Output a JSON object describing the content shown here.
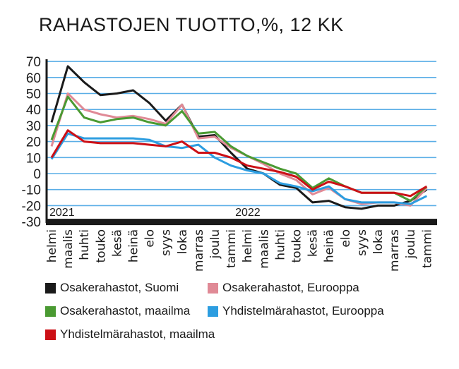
{
  "title": "RAHASTOJEN TUOTTO,%, 12 KK",
  "year_labels": [
    "2021",
    "2022"
  ],
  "legend": [
    {
      "label": "Osakerahastot, Suomi",
      "color": "#1a1a1a"
    },
    {
      "label": "Osakerahastot, Eurooppa",
      "color": "#e08a96"
    },
    {
      "label": "Osakerahastot, maailma",
      "color": "#4a9a32"
    },
    {
      "label": "Yhdistelmärahastot, Eurooppa",
      "color": "#2c9de0"
    },
    {
      "label": "Yhdistelmärahastot, maailma",
      "color": "#cc1016"
    }
  ],
  "chart_data": {
    "type": "line",
    "title": "RAHASTOJEN TUOTTO,%, 12 KK",
    "xlabel": "",
    "ylabel": "%",
    "ylim": [
      -30,
      70
    ],
    "yticks": [
      70,
      60,
      50,
      40,
      30,
      20,
      10,
      0,
      -10,
      -20,
      -30
    ],
    "grid": true,
    "legend_position": "bottom",
    "categories": [
      "helmi",
      "maalis",
      "huhti",
      "touko",
      "kesä",
      "heinä",
      "elo",
      "syys",
      "loka",
      "marras",
      "joulu",
      "tammi",
      "helmi",
      "maalis",
      "huhti",
      "touko",
      "kesä",
      "heinä",
      "elo",
      "syys",
      "loka",
      "marras",
      "joulu",
      "tammi"
    ],
    "year_markers": [
      {
        "label": "2021",
        "index": 0
      },
      {
        "label": "2022",
        "index": 11
      }
    ],
    "series": [
      {
        "name": "Osakerahastot, Suomi",
        "color": "#1a1a1a",
        "values": [
          32,
          67,
          57,
          49,
          50,
          52,
          44,
          33,
          43,
          23,
          24,
          13,
          3,
          0,
          -7,
          -9,
          -18,
          -17,
          -21,
          -22,
          -20,
          -20,
          -17,
          -10
        ]
      },
      {
        "name": "Osakerahastot, Eurooppa",
        "color": "#e08a96",
        "values": [
          17,
          50,
          40,
          37,
          35,
          36,
          34,
          31,
          43,
          22,
          23,
          16,
          11,
          6,
          0,
          -4,
          -13,
          -9,
          -16,
          -19,
          -18,
          -18,
          -20,
          -9
        ]
      },
      {
        "name": "Osakerahastot, maailma",
        "color": "#4a9a32",
        "values": [
          21,
          48,
          35,
          32,
          34,
          35,
          32,
          30,
          39,
          25,
          26,
          17,
          11,
          7,
          3,
          0,
          -9,
          -3,
          -8,
          -12,
          -12,
          -12,
          -17,
          -8
        ]
      },
      {
        "name": "Yhdistelmärahastot, Eurooppa",
        "color": "#2c9de0",
        "values": [
          9,
          25,
          22,
          22,
          22,
          22,
          21,
          17,
          16,
          18,
          10,
          5,
          2,
          0,
          -6,
          -8,
          -11,
          -8,
          -16,
          -18,
          -18,
          -18,
          -19,
          -14
        ]
      },
      {
        "name": "Yhdistelmärahastot, maailma",
        "color": "#cc1016",
        "values": [
          10,
          27,
          20,
          19,
          19,
          19,
          18,
          17,
          20,
          13,
          13,
          10,
          5,
          3,
          1,
          -2,
          -10,
          -5,
          -8,
          -12,
          -12,
          -12,
          -14,
          -8
        ]
      }
    ]
  }
}
